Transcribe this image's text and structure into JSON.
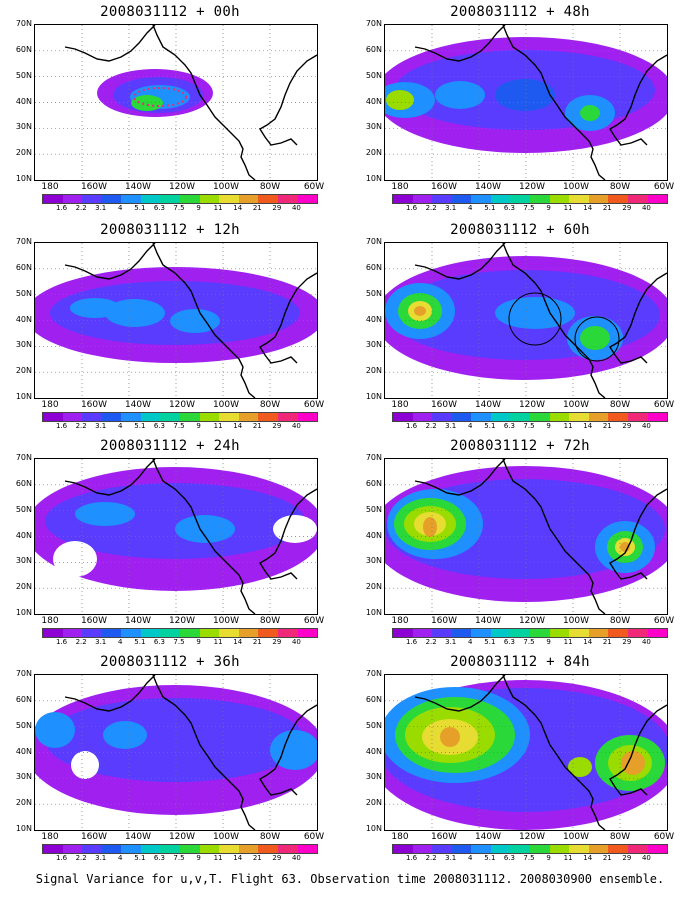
{
  "panels": [
    {
      "title": "2008031112 + 00h"
    },
    {
      "title": "2008031112 + 48h"
    },
    {
      "title": "2008031112 + 12h"
    },
    {
      "title": "2008031112 + 60h"
    },
    {
      "title": "2008031112 + 24h"
    },
    {
      "title": "2008031112 + 72h"
    },
    {
      "title": "2008031112 + 36h"
    },
    {
      "title": "2008031112 + 84h"
    }
  ],
  "axes": {
    "y_ticks": [
      "70N",
      "60N",
      "50N",
      "40N",
      "30N",
      "20N",
      "10N"
    ],
    "x_ticks": [
      "180",
      "160W",
      "140W",
      "120W",
      "100W",
      "80W",
      "60W"
    ]
  },
  "colorbar": {
    "labels": [
      "1.6",
      "2.2",
      "3.1",
      "4",
      "5.1",
      "6.3",
      "7.5",
      "9",
      "11",
      "14",
      "21",
      "29",
      "40"
    ],
    "colors": [
      "#8c00d4",
      "#a020f0",
      "#5a3cff",
      "#1e5af0",
      "#1e90ff",
      "#00c8c8",
      "#00d2a0",
      "#2ad83a",
      "#9adc00",
      "#e6dc32",
      "#e6a02a",
      "#f05a1e",
      "#f02878",
      "#ff00c8"
    ]
  },
  "caption": "Signal Variance for u,v,T. Flight 63. Observation time 2008031112. 2008030900 ensemble."
}
